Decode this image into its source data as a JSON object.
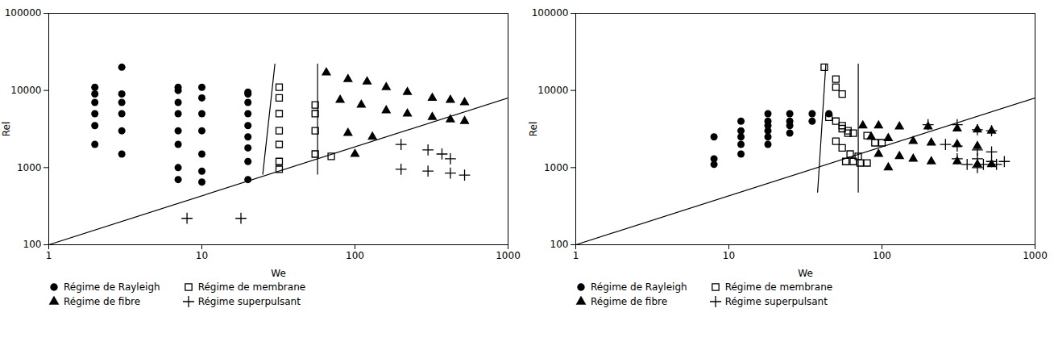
{
  "chart_data": [
    {
      "type": "scatter",
      "xlabel": "We",
      "ylabel": "Rel",
      "log": true,
      "xlim": [
        1,
        1000
      ],
      "ylim": [
        100,
        100000
      ],
      "xticks": [
        1,
        10,
        100,
        1000
      ],
      "yticks": [
        100,
        1000,
        10000,
        100000
      ],
      "legend": "bottom",
      "series": [
        {
          "type": "line",
          "color": "#000000",
          "x": [
            1,
            1000
          ],
          "y": [
            100,
            8000
          ]
        },
        {
          "type": "line",
          "color": "#000000",
          "x": [
            25,
            30
          ],
          "y": [
            820,
            22000
          ]
        },
        {
          "type": "line",
          "color": "#000000",
          "x": [
            57,
            57
          ],
          "y": [
            22000,
            820
          ]
        },
        {
          "name": "Régime de Rayleigh",
          "type": "scatter",
          "marker": "circle",
          "color": "#000000",
          "x": [
            2,
            2,
            2,
            2,
            2,
            2,
            3,
            3,
            3,
            3,
            3,
            3,
            7,
            7,
            7,
            7,
            7,
            7,
            7,
            7,
            10,
            10,
            10,
            10,
            10,
            10,
            10,
            20,
            20,
            20,
            20,
            20,
            20,
            20,
            20,
            20
          ],
          "y": [
            11000,
            9000,
            7000,
            5000,
            3500,
            2000,
            20000,
            9000,
            7000,
            5000,
            3000,
            1500,
            11000,
            10000,
            7000,
            5000,
            3000,
            2000,
            1000,
            700,
            11000,
            8000,
            5000,
            3000,
            1500,
            900,
            650,
            9000,
            7000,
            5000,
            3500,
            2500,
            1800,
            1200,
            700,
            9500
          ]
        },
        {
          "name": "Régime de membrane",
          "type": "scatter",
          "marker": "square-open",
          "color": "#000000",
          "x": [
            32,
            32,
            32,
            32,
            32,
            32,
            32,
            55,
            55,
            55,
            55,
            70
          ],
          "y": [
            11000,
            8000,
            5000,
            3000,
            2000,
            1200,
            950,
            6500,
            5000,
            3000,
            1500,
            1400
          ]
        },
        {
          "name": "Régime de fibre",
          "type": "scatter",
          "marker": "triangle",
          "color": "#000000",
          "x": [
            65,
            90,
            120,
            160,
            220,
            320,
            420,
            520,
            80,
            110,
            160,
            220,
            320,
            420,
            520,
            90,
            130,
            100
          ],
          "y": [
            17000,
            14000,
            13000,
            11000,
            9500,
            8000,
            7500,
            7000,
            7500,
            6500,
            5500,
            5000,
            4500,
            4200,
            4000,
            2800,
            2500,
            1500
          ]
        },
        {
          "name": "Régime superpulsant",
          "type": "scatter",
          "marker": "plus",
          "color": "#000000",
          "x": [
            8,
            18,
            200,
            300,
            370,
            420,
            200,
            300,
            420,
            520
          ],
          "y": [
            220,
            220,
            2000,
            1700,
            1500,
            1300,
            950,
            900,
            850,
            800
          ]
        }
      ]
    },
    {
      "type": "scatter",
      "xlabel": "We",
      "ylabel": "Rel",
      "log": true,
      "xlim": [
        1,
        1000
      ],
      "ylim": [
        100,
        100000
      ],
      "xticks": [
        1,
        10,
        100,
        1000
      ],
      "yticks": [
        100,
        1000,
        10000,
        100000
      ],
      "legend": "bottom",
      "series": [
        {
          "type": "line",
          "color": "#000000",
          "x": [
            1,
            1000
          ],
          "y": [
            100,
            8000
          ]
        },
        {
          "type": "line",
          "color": "#000000",
          "x": [
            38,
            43
          ],
          "y": [
            480,
            22000
          ]
        },
        {
          "type": "line",
          "color": "#000000",
          "x": [
            70,
            70
          ],
          "y": [
            22000,
            480
          ]
        },
        {
          "name": "Régime de Rayleigh",
          "type": "scatter",
          "marker": "circle",
          "color": "#000000",
          "x": [
            8,
            8,
            8,
            12,
            12,
            12,
            12,
            12,
            18,
            18,
            18,
            18,
            18,
            18,
            25,
            25,
            25,
            25,
            35,
            35,
            45
          ],
          "y": [
            2500,
            1300,
            1100,
            4000,
            3000,
            2500,
            2000,
            1500,
            5000,
            4000,
            3500,
            3000,
            2500,
            2000,
            5000,
            4000,
            3500,
            2800,
            5000,
            4000,
            5000
          ]
        },
        {
          "name": "Régime de membrane",
          "type": "scatter",
          "marker": "square-open",
          "color": "#000000",
          "x": [
            42,
            50,
            50,
            55,
            45,
            50,
            55,
            60,
            65,
            50,
            55,
            62,
            70,
            58,
            65,
            72,
            80,
            90,
            100,
            80,
            55,
            60
          ],
          "y": [
            20000,
            14000,
            11000,
            9000,
            4500,
            4000,
            3500,
            3000,
            2800,
            2200,
            1800,
            1500,
            1400,
            1200,
            1200,
            1150,
            1150,
            2100,
            2100,
            2600,
            3200,
            2800
          ]
        },
        {
          "name": "Régime de fibre",
          "type": "scatter",
          "marker": "triangle",
          "color": "#000000",
          "x": [
            75,
            95,
            130,
            200,
            310,
            420,
            520,
            85,
            110,
            160,
            210,
            310,
            420,
            95,
            130,
            160,
            210,
            310,
            420,
            520,
            110
          ],
          "y": [
            3500,
            3500,
            3400,
            3400,
            3200,
            3100,
            3000,
            2500,
            2400,
            2200,
            2100,
            2000,
            1900,
            1500,
            1400,
            1300,
            1200,
            1200,
            1100,
            1100,
            1000
          ]
        },
        {
          "name": "Régime superpulsant",
          "type": "scatter",
          "marker": "plus",
          "color": "#000000",
          "x": [
            200,
            310,
            420,
            520,
            260,
            310,
            420,
            520,
            310,
            420,
            520,
            630,
            360,
            460,
            560,
            420
          ],
          "y": [
            3600,
            3600,
            3100,
            3000,
            2000,
            1900,
            1700,
            1600,
            1300,
            1300,
            1200,
            1200,
            1100,
            1100,
            1100,
            1000
          ]
        }
      ]
    }
  ]
}
